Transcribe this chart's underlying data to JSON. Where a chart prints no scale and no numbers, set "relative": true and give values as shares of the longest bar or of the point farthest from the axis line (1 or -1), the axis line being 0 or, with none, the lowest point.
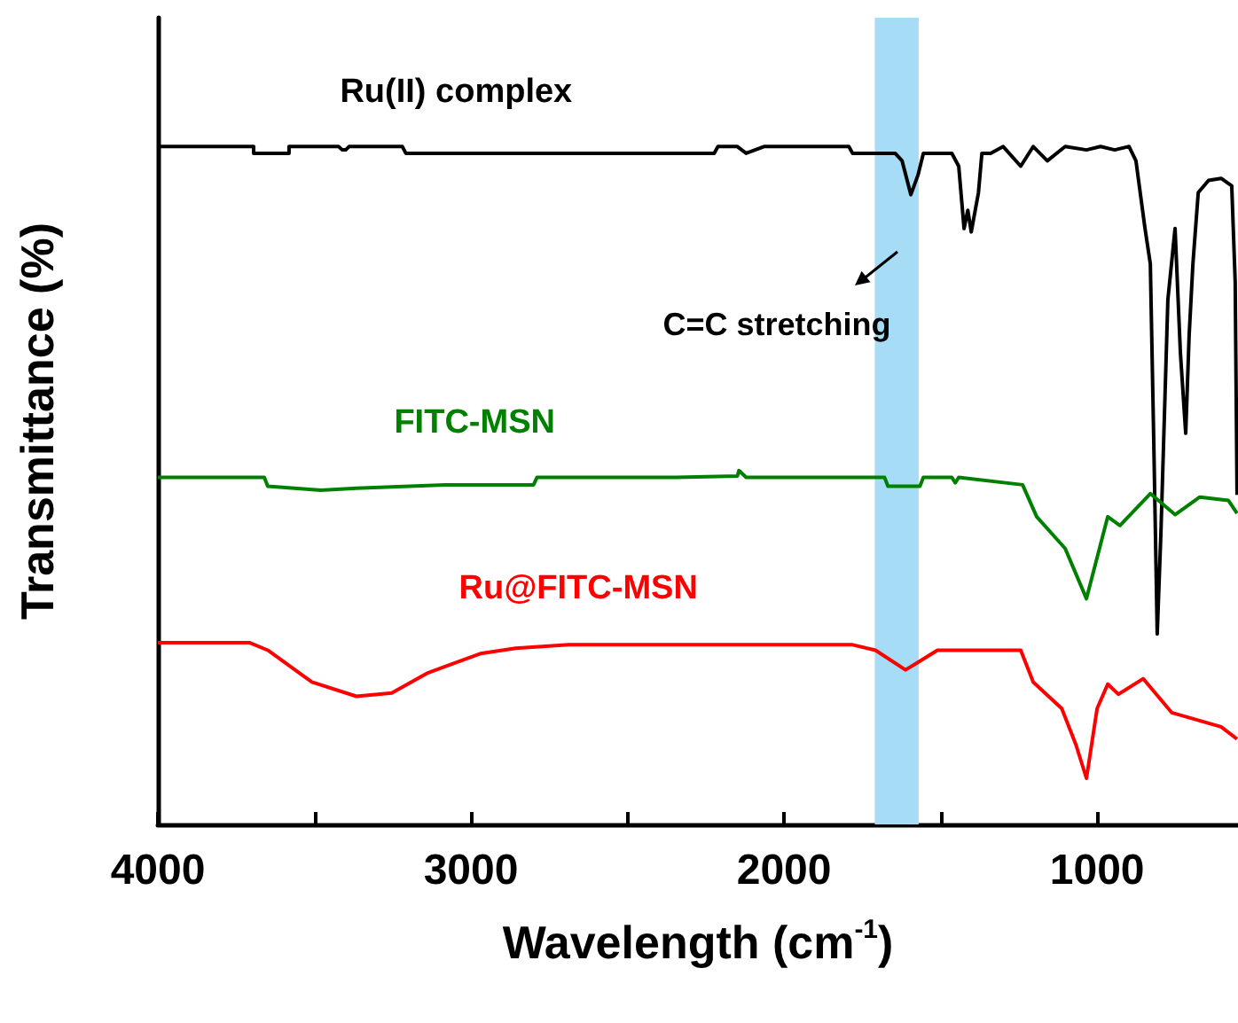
{
  "chart_data": {
    "type": "line",
    "relative": true,
    "xlabel": "Wavelength (cm$^{-1}$)",
    "ylabel": "Transmittance (%)",
    "xlim": [
      4000,
      550
    ],
    "xticks": [
      4000,
      {
        "value": 3500,
        "label": null
      },
      3000,
      {
        "value": 2500,
        "label": null
      },
      2000,
      {
        "value": 1500,
        "label": null
      },
      1000
    ],
    "bands": [
      {
        "axis": "x",
        "from": 1710,
        "to": 1570,
        "color": "#a6dcf5"
      }
    ],
    "annotations": [
      "C=C stretching"
    ],
    "marker": "none",
    "line_style": "solid",
    "grid": false,
    "legend": false,
    "series": [
      {
        "name": "Ru(II) complex",
        "color": "#000000",
        "x": [
          4000,
          3694,
          3694,
          3581,
          3581,
          3423,
          3411,
          3400,
          3389,
          3219,
          3208,
          2223,
          2211,
          2149,
          2121,
          2064,
          2008,
          1894,
          1793,
          1781,
          1645,
          1623,
          1595,
          1572,
          1555,
          1464,
          1442,
          1425,
          1413,
          1402,
          1379,
          1368,
          1340,
          1300,
          1244,
          1204,
          1159,
          1102,
          1034,
          989,
          944,
          898,
          876,
          847,
          830,
          819,
          808,
          796,
          774,
          751,
          734,
          717,
          706,
          694,
          677,
          644,
          604,
          570,
          559,
          553
        ],
        "values": [
          1.0,
          1.0,
          0.99,
          0.99,
          1.0,
          1.0,
          0.995,
          0.995,
          1.0,
          1.0,
          0.99,
          0.99,
          1.0,
          1.0,
          0.99,
          1.0,
          1.0,
          1.0,
          1.0,
          0.99,
          0.99,
          0.979,
          0.929,
          0.958,
          0.99,
          0.99,
          0.971,
          0.879,
          0.906,
          0.874,
          0.932,
          0.99,
          0.99,
          1.0,
          0.971,
          1.0,
          0.979,
          1.0,
          0.995,
          1.0,
          0.995,
          1.0,
          0.979,
          0.879,
          0.827,
          0.564,
          0.281,
          0.433,
          0.774,
          0.879,
          0.696,
          0.577,
          0.722,
          0.827,
          0.932,
          0.95,
          0.953,
          0.942,
          0.801,
          0.486
        ]
      },
      {
        "name": "FITC-MSN",
        "color": "#008000",
        "x": [
          4000,
          3660,
          3649,
          3479,
          3366,
          3083,
          2925,
          2800,
          2789,
          2347,
          2149,
          2144,
          2121,
          1679,
          1668,
          1566,
          1555,
          1464,
          1453,
          1442,
          1238,
          1193,
          1102,
          1034,
          966,
          927,
          830,
          751,
          672,
          581,
          553
        ],
        "values": [
          0.512,
          0.512,
          0.499,
          0.493,
          0.496,
          0.501,
          0.501,
          0.501,
          0.512,
          0.512,
          0.514,
          0.522,
          0.512,
          0.512,
          0.499,
          0.499,
          0.512,
          0.512,
          0.504,
          0.512,
          0.501,
          0.454,
          0.407,
          0.333,
          0.454,
          0.441,
          0.488,
          0.457,
          0.483,
          0.478,
          0.459
        ]
      },
      {
        "name": "Ru@FITC-MSN",
        "color": "#ff0000",
        "x": [
          4000,
          3706,
          3649,
          3508,
          3366,
          3253,
          3140,
          2970,
          2857,
          2687,
          2234,
          1781,
          1708,
          1612,
          1583,
          1510,
          1244,
          1204,
          1113,
          1068,
          1034,
          1000,
          966,
          932,
          853,
          762,
          604,
          553
        ],
        "values": [
          0.268,
          0.268,
          0.257,
          0.21,
          0.189,
          0.194,
          0.223,
          0.252,
          0.26,
          0.265,
          0.265,
          0.265,
          0.257,
          0.228,
          0.236,
          0.257,
          0.257,
          0.21,
          0.171,
          0.118,
          0.068,
          0.171,
          0.207,
          0.192,
          0.215,
          0.165,
          0.144,
          0.126
        ]
      }
    ]
  }
}
